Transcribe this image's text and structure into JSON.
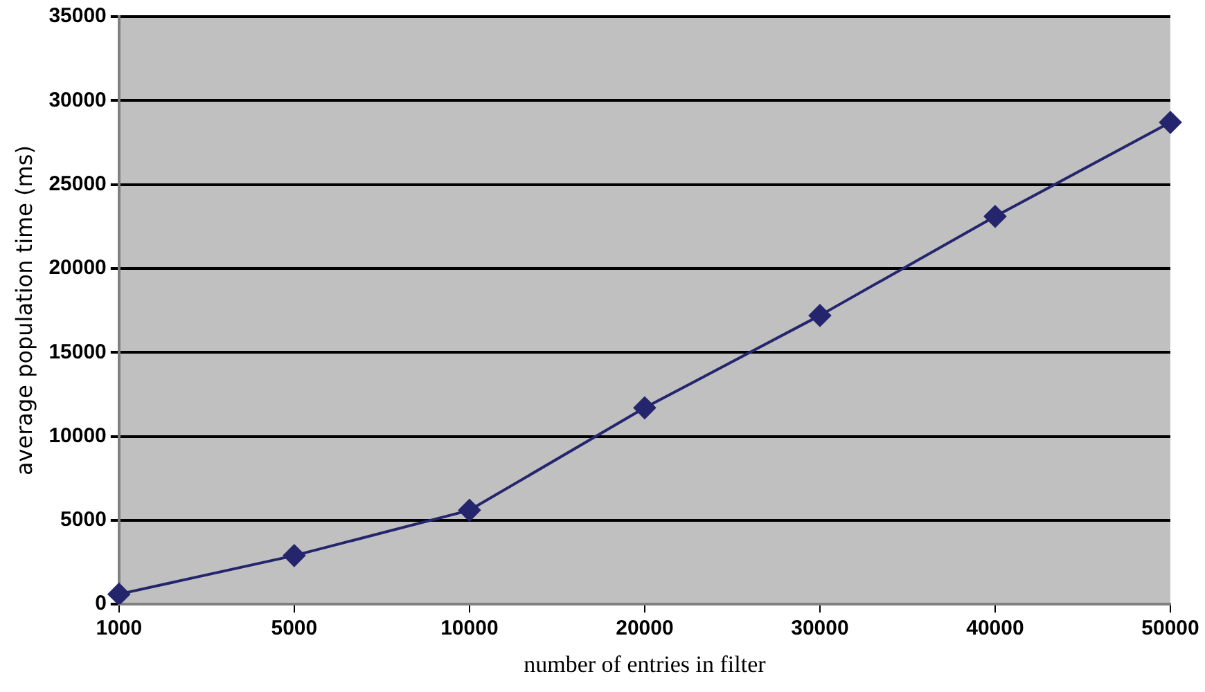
{
  "chart_data": {
    "type": "line",
    "xlabel": "number of entries in filter",
    "ylabel": "average population time (ms)",
    "categories": [
      "1000",
      "5000",
      "10000",
      "20000",
      "30000",
      "40000",
      "50000"
    ],
    "series": [
      {
        "color": "#25256e",
        "values": [
          600,
          2900,
          5600,
          11700,
          17200,
          23100,
          28700
        ]
      }
    ],
    "ylim": [
      0,
      35000
    ],
    "yticks": [
      0,
      5000,
      10000,
      15000,
      20000,
      25000,
      30000,
      35000
    ],
    "grid": "y",
    "legend": false,
    "marker": "diamond",
    "line_style": "solid"
  }
}
